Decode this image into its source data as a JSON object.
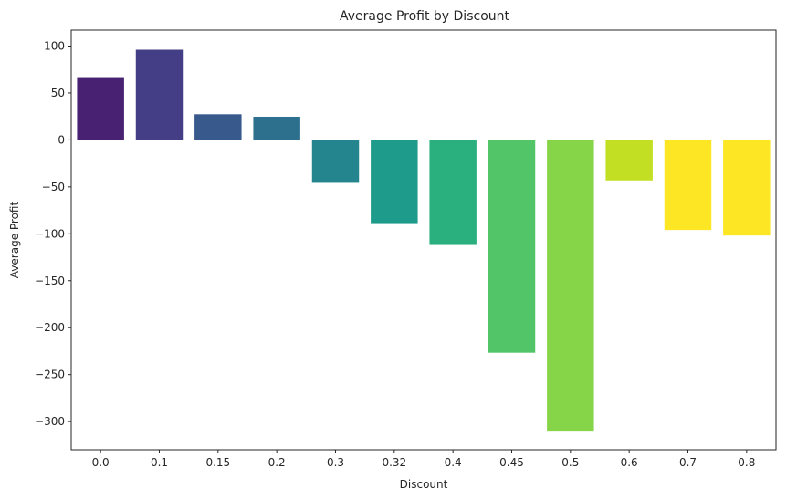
{
  "chart_data": {
    "type": "bar",
    "title": "Average Profit by Discount",
    "xlabel": "Discount",
    "ylabel": "Average Profit",
    "categories": [
      "0.0",
      "0.1",
      "0.15",
      "0.2",
      "0.3",
      "0.32",
      "0.4",
      "0.45",
      "0.5",
      "0.6",
      "0.7",
      "0.8"
    ],
    "values": [
      66.9,
      96.1,
      27.3,
      24.7,
      -45.7,
      -88.6,
      -111.9,
      -226.7,
      -310.7,
      -43.1,
      -95.9,
      -101.8
    ],
    "colors": [
      "#482173",
      "#433e85",
      "#38598c",
      "#2d708e",
      "#25858e",
      "#1e9b8a",
      "#2ab07f",
      "#52c569",
      "#86d549",
      "#c2df23",
      "#fde725",
      "#fde725"
    ],
    "ylim": [
      -330,
      117
    ],
    "yticks": [
      100,
      50,
      0,
      -50,
      -100,
      -150,
      -200,
      -250,
      -300
    ],
    "ytick_labels": [
      "100",
      "50",
      "0",
      "−50",
      "−100",
      "−150",
      "−200",
      "−250",
      "−300"
    ],
    "grid": false,
    "legend": "none"
  }
}
